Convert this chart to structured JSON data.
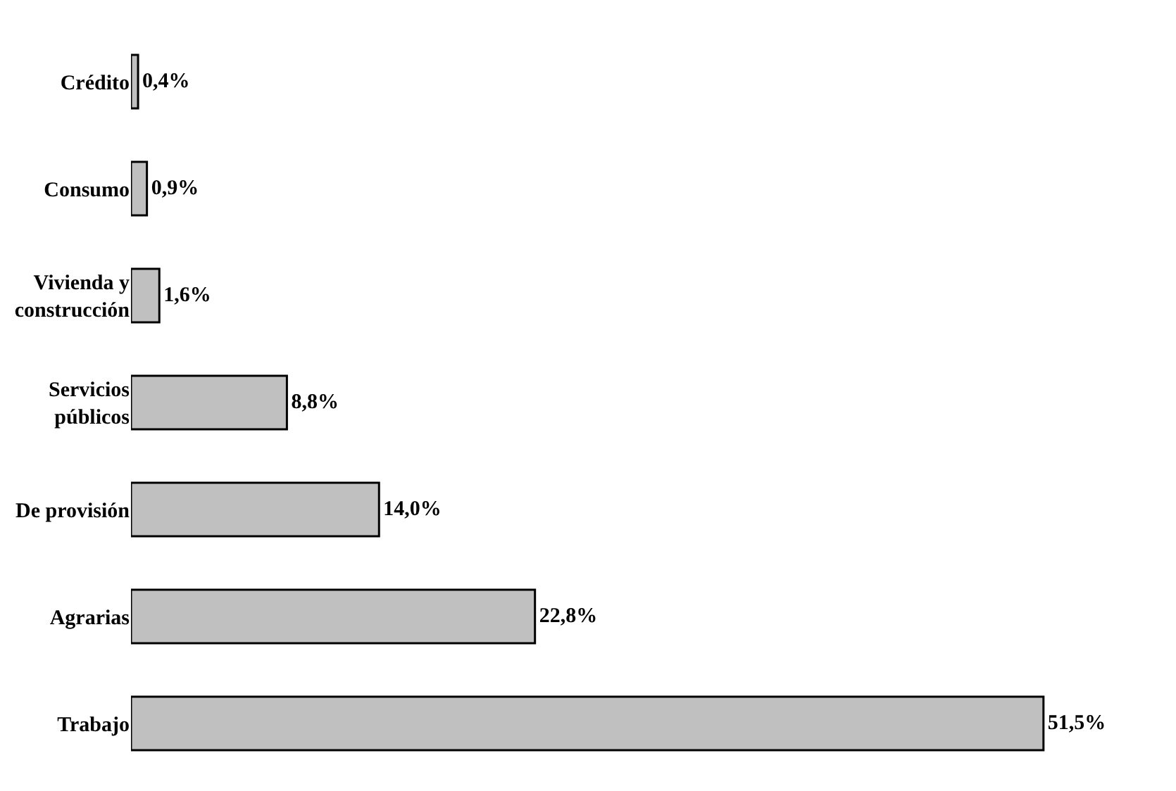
{
  "chart_data": {
    "type": "bar",
    "orientation": "horizontal",
    "categories": [
      "Crédito",
      "Consumo",
      "Vivienda y\nconstrucción",
      "Servicios\npúblicos",
      "De provisión",
      "Agrarias",
      "Trabajo"
    ],
    "values": [
      0.4,
      0.9,
      1.6,
      8.8,
      14.0,
      22.8,
      51.5
    ],
    "value_labels": [
      "0,4%",
      "0,9%",
      "1,6%",
      "8,8%",
      "14,0%",
      "22,8%",
      "51,5%"
    ],
    "color": "#c0c0c0"
  }
}
